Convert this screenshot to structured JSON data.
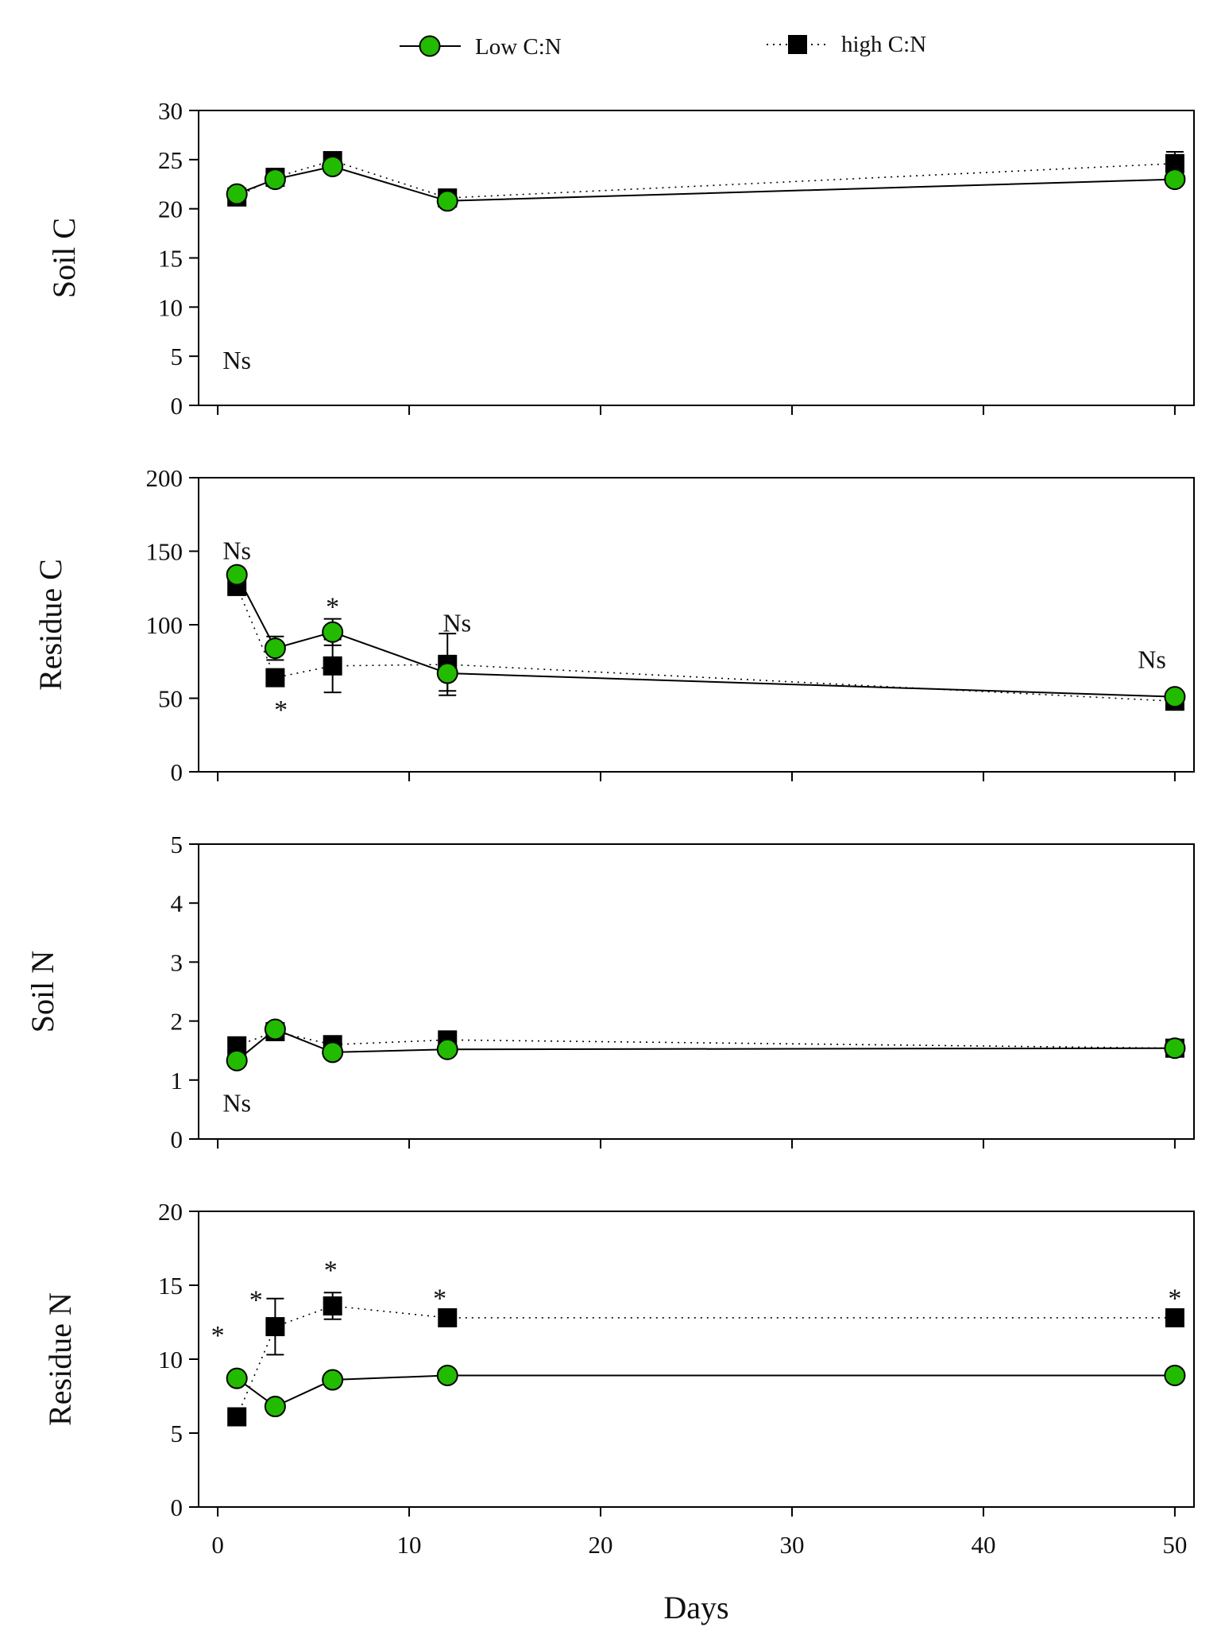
{
  "legend": {
    "low_label": "Low C:N",
    "high_label": "high C:N"
  },
  "colors": {
    "low": "#22bb00",
    "high": "#000000",
    "axis": "#000000"
  },
  "chart_data": [
    {
      "type": "line",
      "title": "",
      "ylabel": "Soil C",
      "xlabel": "",
      "xlim": [
        -1,
        51
      ],
      "ylim": [
        0,
        30
      ],
      "yticks": [
        0,
        5,
        10,
        15,
        20,
        25,
        30
      ],
      "xticks": [
        0,
        10,
        20,
        30,
        40,
        50
      ],
      "show_x_tick_labels": false,
      "x": [
        1,
        3,
        6,
        12,
        50
      ],
      "series": [
        {
          "name": "Low C:N",
          "values": [
            21.5,
            23.0,
            24.3,
            20.8,
            23.0
          ],
          "err": [
            0.4,
            0.5,
            0.5,
            0.4,
            0.4
          ]
        },
        {
          "name": "high C:N",
          "values": [
            21.2,
            23.2,
            24.9,
            21.1,
            24.6
          ],
          "err": [
            0.4,
            0.5,
            0.5,
            0.5,
            1.2
          ]
        }
      ],
      "annotations": [
        {
          "text": "Ns",
          "x": 1,
          "y": 4.7
        }
      ]
    },
    {
      "type": "line",
      "title": "",
      "ylabel": "Residue C",
      "xlabel": "",
      "xlim": [
        -1,
        51
      ],
      "ylim": [
        0,
        200
      ],
      "yticks": [
        0,
        50,
        100,
        150,
        200
      ],
      "xticks": [
        0,
        10,
        20,
        30,
        40,
        50
      ],
      "show_x_tick_labels": false,
      "x": [
        1,
        3,
        6,
        12,
        50
      ],
      "series": [
        {
          "name": "Low C:N",
          "values": [
            134,
            84,
            95,
            67,
            51
          ],
          "err": [
            3,
            8,
            9,
            12,
            2
          ]
        },
        {
          "name": "high C:N",
          "values": [
            126,
            64,
            72,
            73,
            48
          ],
          "err": [
            3,
            3,
            18,
            21,
            2
          ]
        }
      ],
      "annotations": [
        {
          "text": "Ns",
          "x": 1,
          "y": 151
        },
        {
          "text": "*",
          "x": 3.3,
          "y": 48
        },
        {
          "text": "*",
          "x": 6,
          "y": 118
        },
        {
          "text": "Ns",
          "x": 12.5,
          "y": 102
        },
        {
          "text": "Ns",
          "x": 48.8,
          "y": 77
        }
      ]
    },
    {
      "type": "line",
      "title": "",
      "ylabel": "Soil N",
      "xlabel": "",
      "xlim": [
        -1,
        51
      ],
      "ylim": [
        0,
        5
      ],
      "yticks": [
        0,
        1,
        2,
        3,
        4,
        5
      ],
      "xticks": [
        0,
        10,
        20,
        30,
        40,
        50
      ],
      "show_x_tick_labels": false,
      "x": [
        1,
        3,
        6,
        12,
        50
      ],
      "series": [
        {
          "name": "Low C:N",
          "values": [
            1.33,
            1.86,
            1.47,
            1.52,
            1.54
          ],
          "err": [
            0.05,
            0.06,
            0.05,
            0.05,
            0.05
          ]
        },
        {
          "name": "high C:N",
          "values": [
            1.58,
            1.82,
            1.6,
            1.68,
            1.54
          ],
          "err": [
            0.05,
            0.06,
            0.05,
            0.05,
            0.08
          ]
        }
      ],
      "annotations": [
        {
          "text": "Ns",
          "x": 1,
          "y": 0.63
        }
      ]
    },
    {
      "type": "line",
      "title": "",
      "ylabel": "Residue N",
      "xlabel": "Days",
      "xlim": [
        -1,
        51
      ],
      "ylim": [
        0,
        20
      ],
      "yticks": [
        0,
        5,
        10,
        15,
        20
      ],
      "xticks": [
        0,
        10,
        20,
        30,
        40,
        50
      ],
      "show_x_tick_labels": true,
      "x": [
        1,
        3,
        6,
        12,
        50
      ],
      "series": [
        {
          "name": "Low C:N",
          "values": [
            8.7,
            6.8,
            8.6,
            8.9,
            8.9
          ],
          "err": [
            0.2,
            0.3,
            0.2,
            0.2,
            0.2
          ]
        },
        {
          "name": "high C:N",
          "values": [
            6.1,
            12.2,
            13.6,
            12.8,
            12.8
          ],
          "err": [
            0.2,
            1.9,
            0.9,
            0.3,
            0.3
          ]
        }
      ],
      "annotations": [
        {
          "text": "*",
          "x": 0,
          "y": 12.2
        },
        {
          "text": "*",
          "x": 2,
          "y": 14.6
        },
        {
          "text": "*",
          "x": 5.9,
          "y": 16.6
        },
        {
          "text": "*",
          "x": 11.6,
          "y": 14.7
        },
        {
          "text": "*",
          "x": 50,
          "y": 14.7
        }
      ]
    }
  ]
}
